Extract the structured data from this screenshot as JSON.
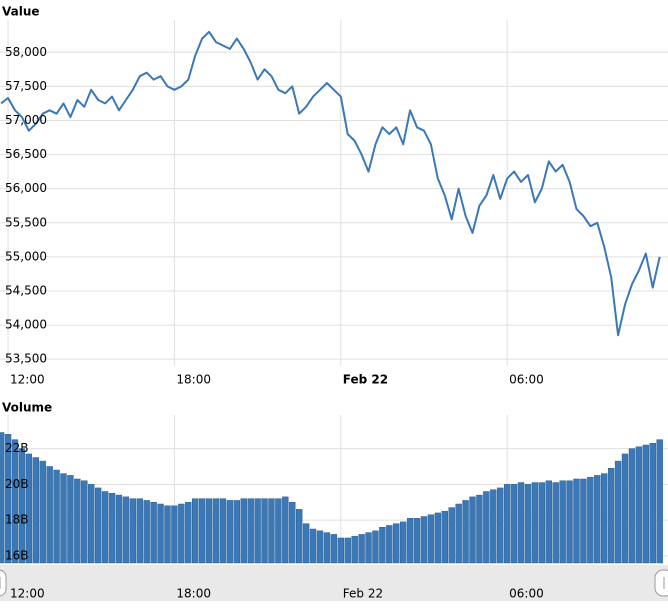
{
  "chart_data": [
    {
      "type": "line",
      "title": "Value",
      "color": "#3a78b8",
      "grid": true,
      "x": [
        -0.25,
        0,
        0.25,
        0.5,
        0.75,
        1,
        1.25,
        1.5,
        1.75,
        2,
        2.25,
        2.5,
        2.75,
        3,
        3.25,
        3.5,
        3.75,
        4,
        4.25,
        4.5,
        4.75,
        5,
        5.25,
        5.5,
        5.75,
        6,
        6.25,
        6.5,
        6.75,
        7,
        7.25,
        7.5,
        7.75,
        8,
        8.25,
        8.5,
        8.75,
        9,
        9.25,
        9.5,
        9.75,
        10,
        10.25,
        10.5,
        10.75,
        11,
        11.25,
        11.5,
        11.75,
        12,
        12.25,
        12.5,
        12.75,
        13,
        13.25,
        13.5,
        13.75,
        14,
        14.25,
        14.5,
        14.75,
        15,
        15.25,
        15.5,
        15.75,
        16,
        16.25,
        16.5,
        16.75,
        17,
        17.25,
        17.5,
        17.75,
        18,
        18.25,
        18.5,
        18.75,
        19,
        19.25,
        19.5,
        19.75,
        20,
        20.25,
        20.5,
        20.75,
        21,
        21.25,
        21.5,
        21.75,
        22,
        22.25,
        22.5,
        22.75,
        23,
        23.25,
        23.5
      ],
      "values": [
        57250,
        57330,
        57150,
        57050,
        56850,
        56950,
        57100,
        57150,
        57100,
        57250,
        57050,
        57300,
        57200,
        57450,
        57300,
        57250,
        57350,
        57150,
        57300,
        57450,
        57650,
        57700,
        57600,
        57650,
        57500,
        57450,
        57500,
        57600,
        57950,
        58200,
        58300,
        58150,
        58100,
        58050,
        58200,
        58050,
        57850,
        57600,
        57750,
        57650,
        57450,
        57400,
        57500,
        57100,
        57200,
        57350,
        57450,
        57550,
        57450,
        57350,
        56800,
        56700,
        56500,
        56250,
        56650,
        56900,
        56800,
        56900,
        56650,
        57150,
        56900,
        56850,
        56650,
        56150,
        55900,
        55550,
        56000,
        55600,
        55350,
        55750,
        55900,
        56200,
        55850,
        56150,
        56250,
        56100,
        56200,
        55800,
        56000,
        56400,
        56250,
        56350,
        56100,
        55700,
        55600,
        55450,
        55500,
        55150,
        54700,
        53850,
        54300,
        54600,
        54800,
        55050,
        54550,
        55000
      ],
      "xlim": [
        -0.29,
        23.8
      ],
      "xticks": [
        {
          "value": 0,
          "label": "12:00"
        },
        {
          "value": 6,
          "label": "18:00"
        },
        {
          "value": 12,
          "label": "Feb 22"
        },
        {
          "value": 18,
          "label": "06:00"
        }
      ],
      "ylim": [
        53400,
        58400
      ],
      "yticks": [
        {
          "value": 53500,
          "label": "53,500"
        },
        {
          "value": 54000,
          "label": "54,000"
        },
        {
          "value": 54500,
          "label": "54,500"
        },
        {
          "value": 55000,
          "label": "55,000"
        },
        {
          "value": 55500,
          "label": "55,500"
        },
        {
          "value": 56000,
          "label": "56,000"
        },
        {
          "value": 56500,
          "label": "56,500"
        },
        {
          "value": 57000,
          "label": "57,000"
        },
        {
          "value": 57500,
          "label": "57,500"
        },
        {
          "value": 58000,
          "label": "58,000"
        }
      ]
    },
    {
      "type": "bar",
      "title": "Volume",
      "color": "#3b78b5",
      "grid": true,
      "x": [
        -0.25,
        0,
        0.25,
        0.5,
        0.75,
        1,
        1.25,
        1.5,
        1.75,
        2,
        2.25,
        2.5,
        2.75,
        3,
        3.25,
        3.5,
        3.75,
        4,
        4.25,
        4.5,
        4.75,
        5,
        5.25,
        5.5,
        5.75,
        6,
        6.25,
        6.5,
        6.75,
        7,
        7.25,
        7.5,
        7.75,
        8,
        8.25,
        8.5,
        8.75,
        9,
        9.25,
        9.5,
        9.75,
        10,
        10.25,
        10.5,
        10.75,
        11,
        11.25,
        11.5,
        11.75,
        12,
        12.25,
        12.5,
        12.75,
        13,
        13.25,
        13.5,
        13.75,
        14,
        14.25,
        14.5,
        14.75,
        15,
        15.25,
        15.5,
        15.75,
        16,
        16.25,
        16.5,
        16.75,
        17,
        17.25,
        17.5,
        17.75,
        18,
        18.25,
        18.5,
        18.75,
        19,
        19.25,
        19.5,
        19.75,
        20,
        20.25,
        20.5,
        20.75,
        21,
        21.25,
        21.5,
        21.75,
        22,
        22.25,
        22.5,
        22.75,
        23,
        23.25,
        23.5
      ],
      "values": [
        22.9,
        22.8,
        22.5,
        22.0,
        21.7,
        21.5,
        21.3,
        21.0,
        20.8,
        20.6,
        20.5,
        20.3,
        20.2,
        20.0,
        19.8,
        19.6,
        19.5,
        19.4,
        19.3,
        19.2,
        19.2,
        19.1,
        19.0,
        18.9,
        18.8,
        18.8,
        18.9,
        19.0,
        19.2,
        19.2,
        19.2,
        19.2,
        19.2,
        19.1,
        19.1,
        19.2,
        19.2,
        19.2,
        19.2,
        19.2,
        19.2,
        19.3,
        19.0,
        18.6,
        17.8,
        17.5,
        17.4,
        17.3,
        17.2,
        17.0,
        17.0,
        17.1,
        17.2,
        17.3,
        17.4,
        17.6,
        17.7,
        17.8,
        17.9,
        18.1,
        18.1,
        18.2,
        18.3,
        18.4,
        18.5,
        18.7,
        18.9,
        19.1,
        19.3,
        19.4,
        19.6,
        19.7,
        19.8,
        20.0,
        20.0,
        20.1,
        20.0,
        20.1,
        20.1,
        20.2,
        20.1,
        20.2,
        20.2,
        20.3,
        20.3,
        20.4,
        20.5,
        20.6,
        20.9,
        21.3,
        21.7,
        22.0,
        22.1,
        22.2,
        22.3,
        22.5
      ],
      "xlim": [
        -0.29,
        23.8
      ],
      "xticks": [
        {
          "value": 0,
          "label": "12:00"
        },
        {
          "value": 6,
          "label": "18:00"
        },
        {
          "value": 12,
          "label": "Feb 22"
        },
        {
          "value": 18,
          "label": "06:00"
        }
      ],
      "ylim": [
        15.6,
        23.6
      ],
      "yticks": [
        {
          "value": 16,
          "label": "16B"
        },
        {
          "value": 18,
          "label": "18B"
        },
        {
          "value": 20,
          "label": "20B"
        },
        {
          "value": 22,
          "label": "22B"
        }
      ]
    }
  ]
}
